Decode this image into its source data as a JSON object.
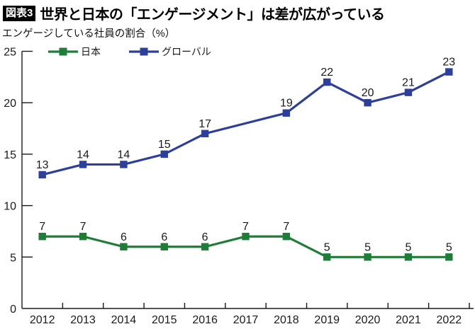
{
  "header": {
    "badge": "図表3",
    "title": "世界と日本の「エンゲージメント」は差が広がっている"
  },
  "subtitle": "エンゲージしている社員の割合（%）",
  "chart_data": {
    "type": "line",
    "categories": [
      "2012",
      "2013",
      "2014",
      "2015",
      "2016",
      "2017",
      "2018",
      "2019",
      "2020",
      "2021",
      "2022"
    ],
    "series": [
      {
        "name": "日本",
        "color": "#1e7e38",
        "values": [
          7,
          7,
          6,
          6,
          6,
          7,
          7,
          5,
          5,
          5,
          5
        ]
      },
      {
        "name": "グローバル",
        "color": "#2c3f9a",
        "values": [
          13,
          14,
          14,
          15,
          17,
          null,
          19,
          22,
          20,
          21,
          23
        ]
      }
    ],
    "title": "",
    "xlabel": "",
    "ylabel": "エンゲージしている社員の割合（%）",
    "ylim": [
      0,
      25
    ],
    "yticks": [
      0,
      5,
      10,
      15,
      20,
      25
    ],
    "grid": false,
    "legend_position": "top-left",
    "marker": "square",
    "data_labels": true
  },
  "colors": {
    "axis": "#1a1a1a",
    "label_text": "#1a1a1a",
    "background": "#ffffff"
  }
}
